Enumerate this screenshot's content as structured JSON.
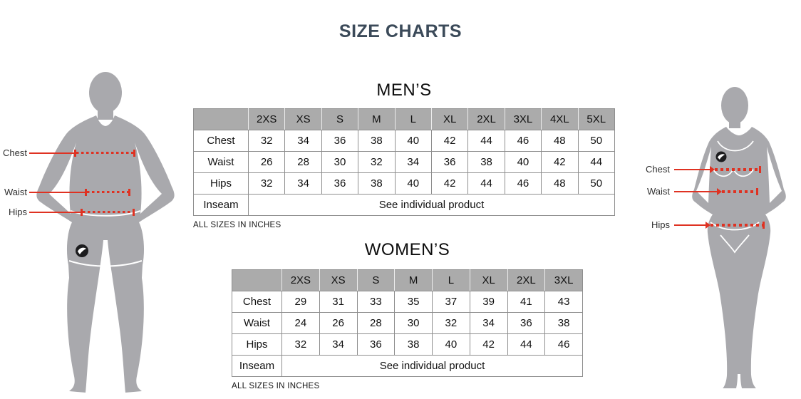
{
  "title": "SIZE CHARTS",
  "figures": {
    "male": {
      "chest_label": "Chest",
      "waist_label": "Waist",
      "hips_label": "Hips"
    },
    "female": {
      "chest_label": "Chest",
      "waist_label": "Waist",
      "hips_label": "Hips"
    }
  },
  "chart_data": [
    {
      "type": "table",
      "name": "mens-size-table",
      "title": "MEN’S",
      "columns": [
        "",
        "2XS",
        "XS",
        "S",
        "M",
        "L",
        "XL",
        "2XL",
        "3XL",
        "4XL",
        "5XL"
      ],
      "rows": [
        [
          "Chest",
          "32",
          "34",
          "36",
          "38",
          "40",
          "42",
          "44",
          "46",
          "48",
          "50"
        ],
        [
          "Waist",
          "26",
          "28",
          "30",
          "32",
          "34",
          "36",
          "38",
          "40",
          "42",
          "44"
        ],
        [
          "Hips",
          "32",
          "34",
          "36",
          "38",
          "40",
          "42",
          "44",
          "46",
          "48",
          "50"
        ],
        [
          "Inseam",
          "See individual product"
        ]
      ],
      "note": "ALL SIZES IN INCHES"
    },
    {
      "type": "table",
      "name": "womens-size-table",
      "title": "WOMEN’S",
      "columns": [
        "",
        "2XS",
        "XS",
        "S",
        "M",
        "L",
        "XL",
        "2XL",
        "3XL"
      ],
      "rows": [
        [
          "Chest",
          "29",
          "31",
          "33",
          "35",
          "37",
          "39",
          "41",
          "43"
        ],
        [
          "Waist",
          "24",
          "26",
          "28",
          "30",
          "32",
          "34",
          "36",
          "38"
        ],
        [
          "Hips",
          "32",
          "34",
          "36",
          "38",
          "40",
          "42",
          "44",
          "46"
        ],
        [
          "Inseam",
          "See individual product"
        ]
      ],
      "note": "ALL SIZES IN INCHES"
    }
  ],
  "colors": {
    "title_text": "#3b4a59",
    "accent_red": "#df3222",
    "silhouette_gray": "#a9a9ad",
    "table_header_bg": "#ababab",
    "table_border": "#8e8e8e"
  }
}
